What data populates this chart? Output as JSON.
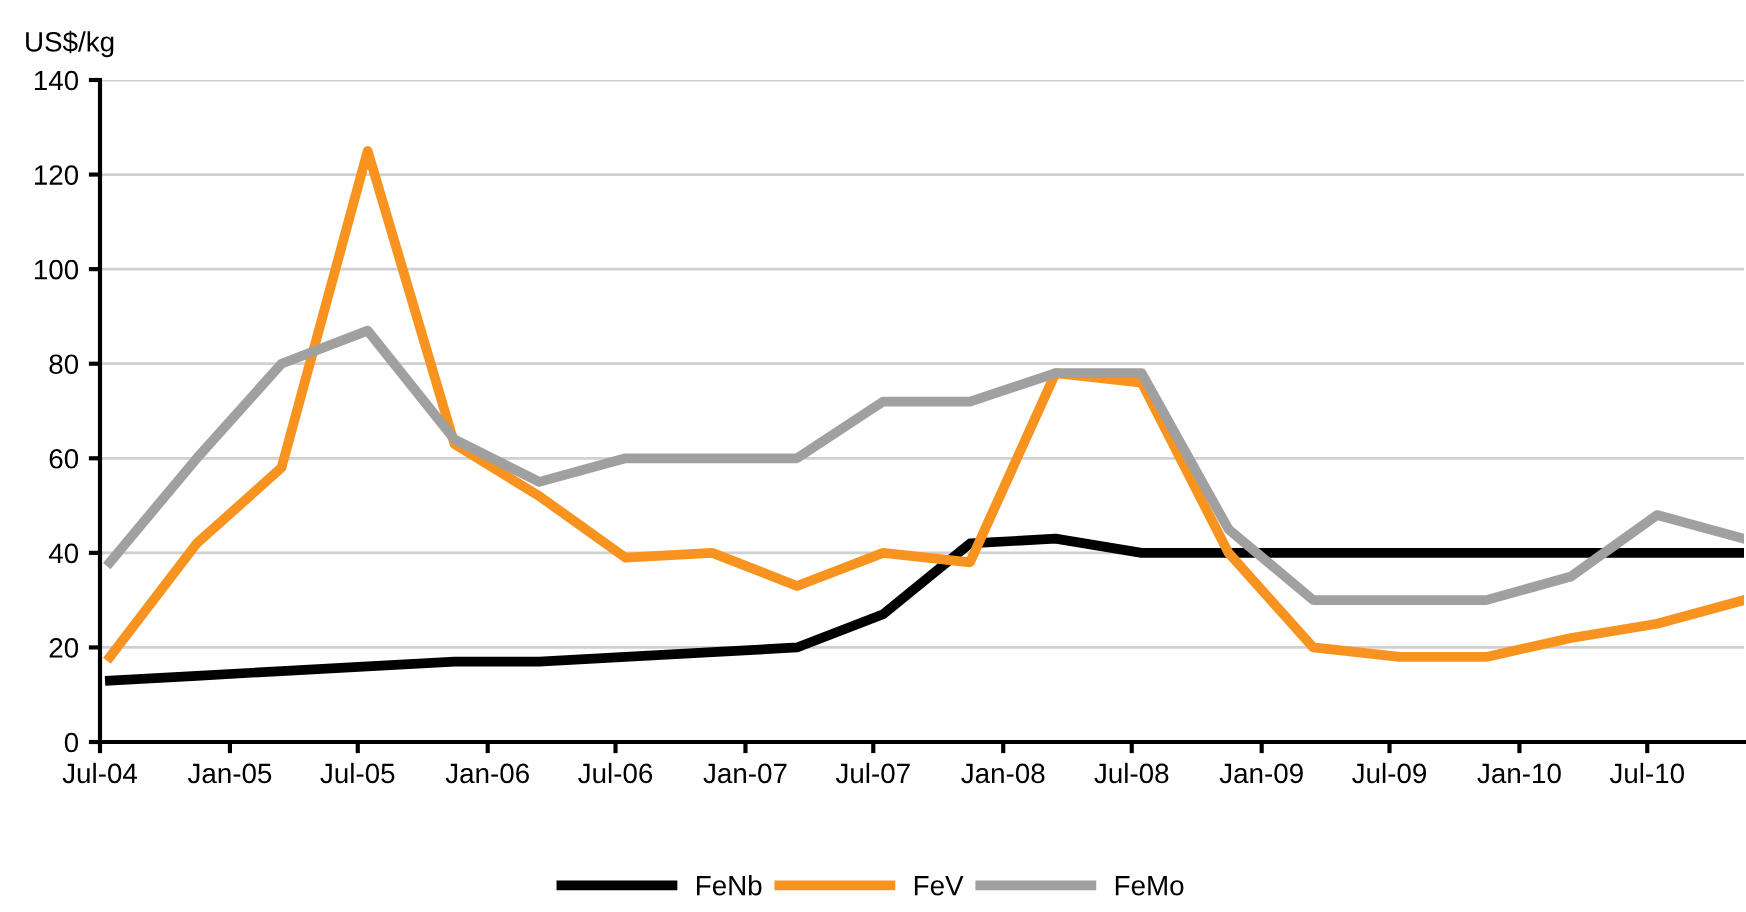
{
  "chart_data": {
    "type": "line",
    "ylabel": "US$/kg",
    "x": [
      "2004-07-15",
      "2004-11-15",
      "2005-03-15",
      "2005-07-15",
      "2005-11-15",
      "2006-03-15",
      "2006-07-15",
      "2006-11-15",
      "2007-03-15",
      "2007-07-15",
      "2007-11-15",
      "2008-03-15",
      "2008-07-15",
      "2008-11-15",
      "2009-03-15",
      "2009-07-15",
      "2009-11-15",
      "2010-03-15",
      "2010-07-15",
      "2010-11-15"
    ],
    "series": [
      {
        "name": "FeNb",
        "color": "#000000",
        "values": [
          13,
          14,
          15,
          16,
          17,
          17,
          18,
          19,
          20,
          27,
          42,
          43,
          40,
          40,
          40,
          40,
          40,
          40,
          40,
          40
        ]
      },
      {
        "name": "FeV",
        "color": "#f7931e",
        "values": [
          18,
          42,
          58,
          125,
          63,
          52,
          39,
          40,
          33,
          40,
          38,
          78,
          76,
          40,
          20,
          18,
          18,
          22,
          25,
          30
        ]
      },
      {
        "name": "FeMo",
        "color": "#a0a0a0",
        "values": [
          38,
          60,
          80,
          87,
          64,
          55,
          60,
          60,
          60,
          72,
          72,
          78,
          78,
          45,
          30,
          30,
          30,
          35,
          48,
          43
        ]
      }
    ],
    "xlim": [
      "2004-07-01",
      "2010-11-15"
    ],
    "xticks": [
      {
        "value": "2004-07-01",
        "label": "Jul-04"
      },
      {
        "value": "2005-01-01",
        "label": "Jan-05"
      },
      {
        "value": "2005-07-01",
        "label": "Jul-05"
      },
      {
        "value": "2006-01-01",
        "label": "Jan-06"
      },
      {
        "value": "2006-07-01",
        "label": "Jul-06"
      },
      {
        "value": "2007-01-01",
        "label": "Jan-07"
      },
      {
        "value": "2007-07-01",
        "label": "Jul-07"
      },
      {
        "value": "2008-01-01",
        "label": "Jan-08"
      },
      {
        "value": "2008-07-01",
        "label": "Jul-08"
      },
      {
        "value": "2009-01-01",
        "label": "Jan-09"
      },
      {
        "value": "2009-07-01",
        "label": "Jul-09"
      },
      {
        "value": "2010-01-01",
        "label": "Jan-10"
      },
      {
        "value": "2010-07-01",
        "label": "Jul-10"
      }
    ],
    "ylim": [
      0,
      140
    ],
    "yticks": [
      0,
      20,
      40,
      60,
      80,
      100,
      120,
      140
    ],
    "grid": "y",
    "legend": "bottom",
    "marker": "none",
    "line_style": "solid"
  }
}
